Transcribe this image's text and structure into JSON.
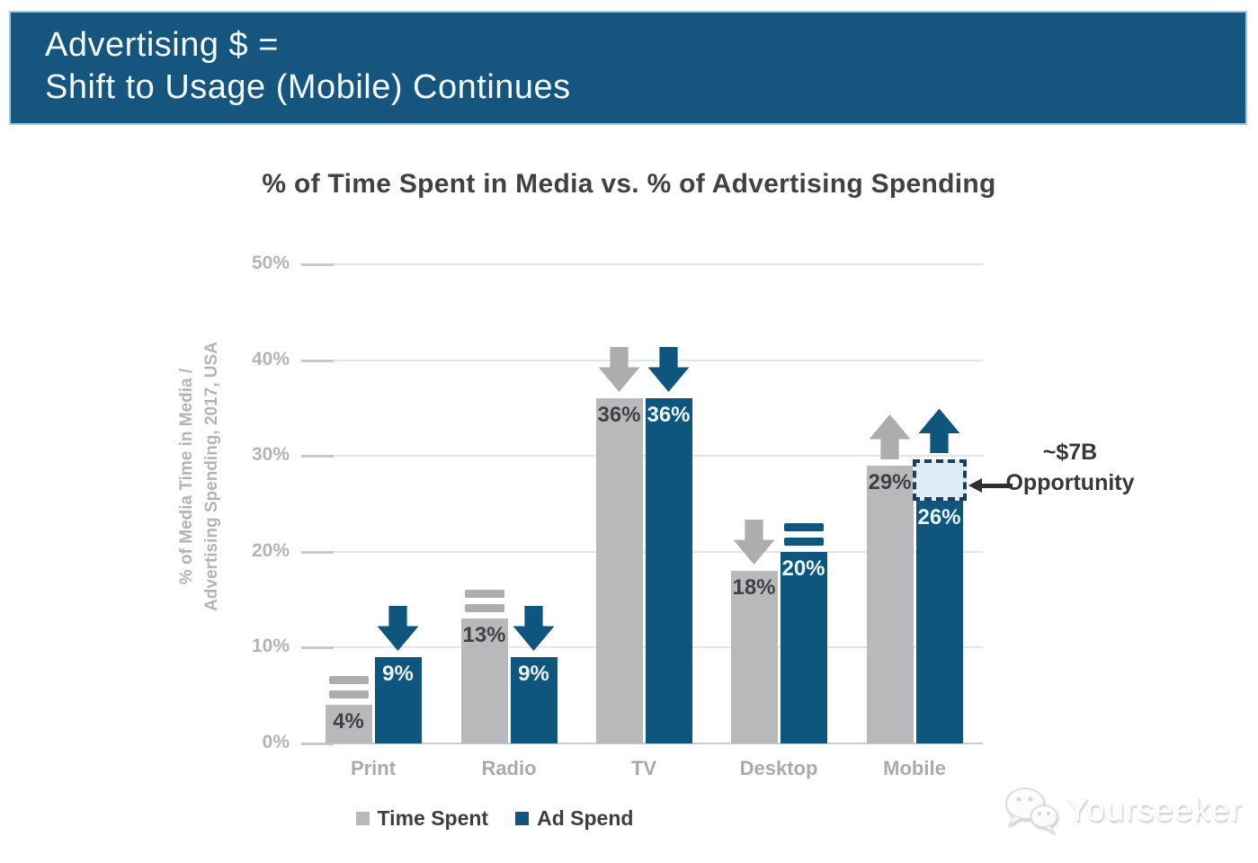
{
  "banner": {
    "line1": "Advertising $ =",
    "line2": "Shift to Usage (Mobile) Continues",
    "bg_color": "#16567E",
    "text_color": "#F2F8FC"
  },
  "chart_data": {
    "type": "bar",
    "title": "% of Time Spent in Media vs. % of Advertising Spending",
    "ylabel_line1": "% of Media Time in Media /",
    "ylabel_line2": "Advertising Spending, 2017, USA",
    "categories": [
      "Print",
      "Radio",
      "TV",
      "Desktop",
      "Mobile"
    ],
    "series": [
      {
        "name": "Time Spent",
        "color": "#B7B9BA",
        "label_color": "#3F4245",
        "icon_color": "#ABADAF",
        "values": [
          4,
          13,
          36,
          18,
          29
        ],
        "labels": [
          "4%",
          "13%",
          "36%",
          "18%",
          "29%"
        ],
        "trends": [
          "flat",
          "flat",
          "down",
          "down",
          "up"
        ]
      },
      {
        "name": "Ad Spend",
        "color": "#0F567F",
        "label_color": "#E9F4FB",
        "icon_color": "#0F567F",
        "values": [
          9,
          9,
          36,
          20,
          26
        ],
        "labels": [
          "9%",
          "9%",
          "36%",
          "20%",
          "26%"
        ],
        "trends": [
          "down",
          "down",
          "down",
          "flat",
          "up"
        ]
      }
    ],
    "yticks": [
      "50%",
      "40%",
      "30%",
      "20%",
      "10%",
      "0%"
    ],
    "ylim": [
      0,
      50
    ],
    "grid": true,
    "legend_position": "bottom",
    "annotation": {
      "line1": "~$7B",
      "line2": "Opportunity",
      "box": {
        "category": "Mobile",
        "series": "Ad Spend",
        "from_pct": 26,
        "to_pct": 29.6,
        "fill": "#DCEDF7",
        "border": "#1D3E5C"
      }
    }
  },
  "watermark": {
    "text": "Yourseeker"
  }
}
